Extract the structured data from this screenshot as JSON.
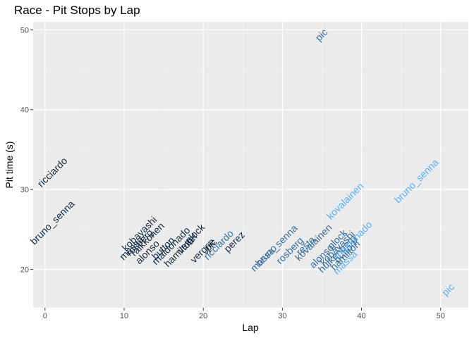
{
  "chart_data": {
    "type": "scatter",
    "title": "Race - Pit Stops by Lap",
    "xlabel": "Lap",
    "ylabel": "Pit time (s)",
    "xlim": [
      -1.5,
      53.5
    ],
    "ylim": [
      15.2,
      51.0
    ],
    "xticks": [
      0,
      10,
      20,
      30,
      40,
      50
    ],
    "yticks": [
      20,
      30,
      40,
      50
    ],
    "grid": true,
    "legend": "none",
    "color_scale": {
      "low": "#132B43",
      "high": "#56B1F7",
      "min_stop": 1,
      "max_stop": 3
    },
    "points": [
      {
        "label": "pic",
        "x": 35,
        "y": 49.3,
        "stop": 2
      },
      {
        "label": "ricciardo",
        "x": 1,
        "y": 32.1,
        "stop": 1
      },
      {
        "label": "bruno_senna",
        "x": 1,
        "y": 25.8,
        "stop": 1
      },
      {
        "label": "kobayashi",
        "x": 12,
        "y": 24.4,
        "stop": 1
      },
      {
        "label": "massa",
        "x": 11,
        "y": 22.6,
        "stop": 1
      },
      {
        "label": "rosberg",
        "x": 12,
        "y": 23.3,
        "stop": 1
      },
      {
        "label": "raikkonen",
        "x": 13,
        "y": 23.7,
        "stop": 1
      },
      {
        "label": "alonso",
        "x": 13,
        "y": 22.1,
        "stop": 1
      },
      {
        "label": "button",
        "x": 15,
        "y": 22.6,
        "stop": 1
      },
      {
        "label": "maldonado",
        "x": 16,
        "y": 22.9,
        "stop": 1
      },
      {
        "label": "hamilton",
        "x": 17,
        "y": 22.1,
        "stop": 1
      },
      {
        "label": "vettel",
        "x": 18,
        "y": 23.2,
        "stop": 1
      },
      {
        "label": "glock",
        "x": 19,
        "y": 24.4,
        "stop": 1
      },
      {
        "label": "vergne",
        "x": 20,
        "y": 22.3,
        "stop": 1
      },
      {
        "label": "pic",
        "x": 21,
        "y": 23.0,
        "stop": 1
      },
      {
        "label": "ricciardo",
        "x": 22,
        "y": 23.0,
        "stop": 2
      },
      {
        "label": "perez",
        "x": 24,
        "y": 23.4,
        "stop": 1
      },
      {
        "label": "massa_senna",
        "x": 29,
        "y": 22.6,
        "stop": 2
      },
      {
        "label": "bruno",
        "x": 28,
        "y": 21.7,
        "stop": 2
      },
      {
        "label": "rosberg",
        "x": 31,
        "y": 22.3,
        "stop": 2
      },
      {
        "label": "resta",
        "x": 33,
        "y": 22.9,
        "stop": 2
      },
      {
        "label": "kovalainen",
        "x": 34,
        "y": 23.3,
        "stop": 2
      },
      {
        "label": "alonso",
        "x": 35,
        "y": 21.6,
        "stop": 2
      },
      {
        "label": "glock",
        "x": 37,
        "y": 23.7,
        "stop": 2
      },
      {
        "label": "kobayashi",
        "x": 37,
        "y": 22.6,
        "stop": 2
      },
      {
        "label": "hulkenberg",
        "x": 37,
        "y": 21.9,
        "stop": 2
      },
      {
        "label": "button",
        "x": 38,
        "y": 22.2,
        "stop": 2
      },
      {
        "label": "hamilton",
        "x": 38,
        "y": 21.7,
        "stop": 2
      },
      {
        "label": "maldonado",
        "x": 39,
        "y": 23.6,
        "stop": 3
      },
      {
        "label": "massa",
        "x": 38,
        "y": 20.8,
        "stop": 3
      },
      {
        "label": "kovalainen",
        "x": 38,
        "y": 28.5,
        "stop": 3
      },
      {
        "label": "bruno_senna",
        "x": 47,
        "y": 31.0,
        "stop": 3
      },
      {
        "label": "pic",
        "x": 51,
        "y": 17.4,
        "stop": 3
      }
    ]
  }
}
